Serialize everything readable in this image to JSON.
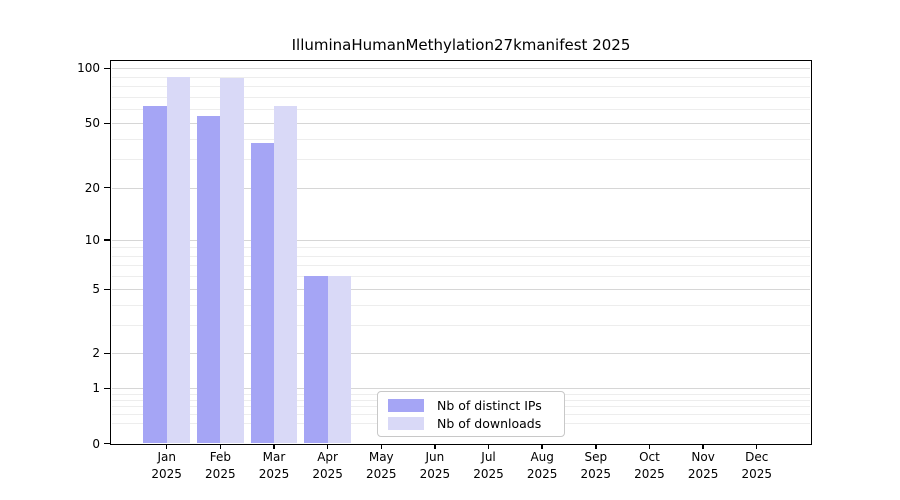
{
  "title": "IlluminaHumanMethylation27kmanifest 2025",
  "chart_data": {
    "type": "bar",
    "title": "IlluminaHumanMethylation27kmanifest 2025",
    "categories": [
      "Jan",
      "Feb",
      "Mar",
      "Apr",
      "May",
      "Jun",
      "Jul",
      "Aug",
      "Sep",
      "Oct",
      "Nov",
      "Dec"
    ],
    "tick_label_year": "2025",
    "series": [
      {
        "name": "Nb of distinct IPs",
        "color": "#a5a5f5",
        "values": [
          62,
          55,
          38,
          6,
          0,
          0,
          0,
          0,
          0,
          0,
          0,
          0
        ]
      },
      {
        "name": "Nb of downloads",
        "color": "#d9d9f7",
        "values": [
          90,
          89,
          62,
          6,
          0,
          0,
          0,
          0,
          0,
          0,
          0,
          0
        ]
      }
    ],
    "ytick_labels": [
      "100",
      "50",
      "20",
      "10",
      "5",
      "2",
      "1",
      "0"
    ],
    "yticks": [
      100,
      50,
      20,
      10,
      5,
      2,
      1,
      0
    ],
    "yscale": "log above 1, linear below 1",
    "ylim": [
      0,
      115
    ],
    "grid": true,
    "legend": {
      "position": "inside lower center",
      "items": [
        "Nb of distinct IPs",
        "Nb of downloads"
      ]
    }
  }
}
